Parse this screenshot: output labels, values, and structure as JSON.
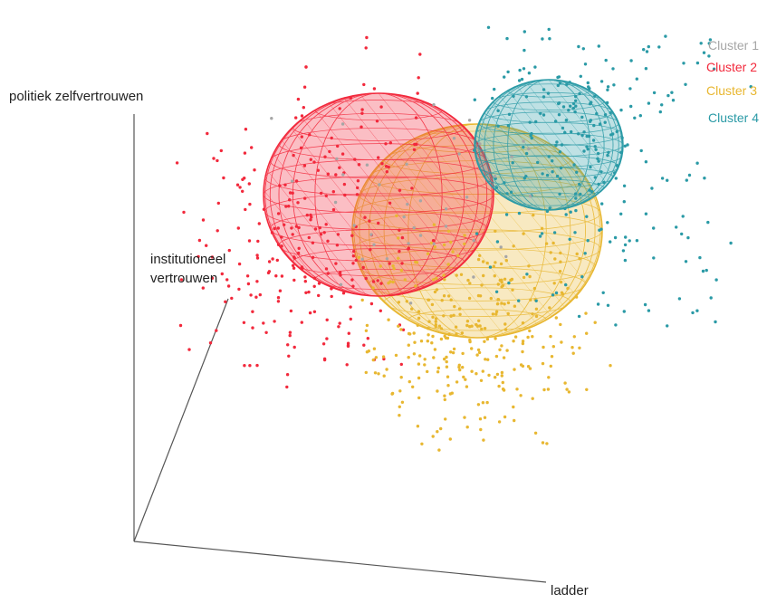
{
  "chart_data": {
    "type": "scatter",
    "projection": "3d",
    "axes": {
      "x": "ladder",
      "y": "institutioneel vertrouwen",
      "z": "politiek zelfvertrouwen"
    },
    "legend": {
      "position": "top-right",
      "entries": [
        "Cluster 1",
        "Cluster 2",
        "Cluster 3",
        "Cluster 4"
      ],
      "visible_text": [
        "Cluster 1",
        "Cluster 2",
        "Cluster 3",
        "Cluster 4"
      ]
    },
    "series": [
      {
        "name": "Cluster 1",
        "color": "#a6a6a6"
      },
      {
        "name": "Cluster 2",
        "color": "#f2293c",
        "ellipsoid": true
      },
      {
        "name": "Cluster 3",
        "color": "#e8b731",
        "ellipsoid": true
      },
      {
        "name": "Cluster 4",
        "color": "#2a9aa6",
        "ellipsoid": true
      }
    ],
    "grid": false
  }
}
